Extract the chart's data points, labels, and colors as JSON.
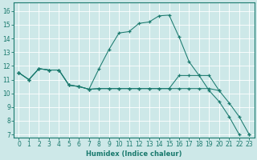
{
  "bg_color": "#cde8e8",
  "line_color": "#1a7a6e",
  "grid_color": "#ffffff",
  "xlim": [
    -0.5,
    23.5
  ],
  "ylim": [
    6.8,
    16.6
  ],
  "xticks": [
    0,
    1,
    2,
    3,
    4,
    5,
    6,
    7,
    8,
    9,
    10,
    11,
    12,
    13,
    14,
    15,
    16,
    17,
    18,
    19,
    20,
    21,
    22,
    23
  ],
  "yticks": [
    7,
    8,
    9,
    10,
    11,
    12,
    13,
    14,
    15,
    16
  ],
  "xlabel": "Humidex (Indice chaleur)",
  "series": {
    "s1": [
      11.5,
      11.0,
      11.8,
      11.7,
      11.7,
      10.6,
      10.5,
      10.3,
      11.8,
      13.2,
      14.4,
      14.5,
      15.1,
      15.2,
      15.65,
      15.7,
      14.1,
      12.3,
      11.3,
      10.2,
      9.4,
      8.3,
      7.0,
      null
    ],
    "s2": [
      11.5,
      11.0,
      11.8,
      11.7,
      11.7,
      10.6,
      10.5,
      10.3,
      10.35,
      10.35,
      10.35,
      10.35,
      10.35,
      10.35,
      10.35,
      10.35,
      11.3,
      11.3,
      11.3,
      11.3,
      10.2,
      null,
      null,
      null
    ],
    "s3": [
      11.5,
      null,
      null,
      null,
      null,
      null,
      null,
      null,
      null,
      null,
      null,
      null,
      null,
      null,
      null,
      null,
      null,
      null,
      null,
      null,
      null,
      null,
      null,
      7.0
    ],
    "s4": [
      11.5,
      11.0,
      11.8,
      11.7,
      11.7,
      10.6,
      10.5,
      10.3,
      10.35,
      10.35,
      10.35,
      10.35,
      10.35,
      10.35,
      10.35,
      10.35,
      10.35,
      10.35,
      10.35,
      10.35,
      10.2,
      9.3,
      8.3,
      7.0
    ]
  }
}
